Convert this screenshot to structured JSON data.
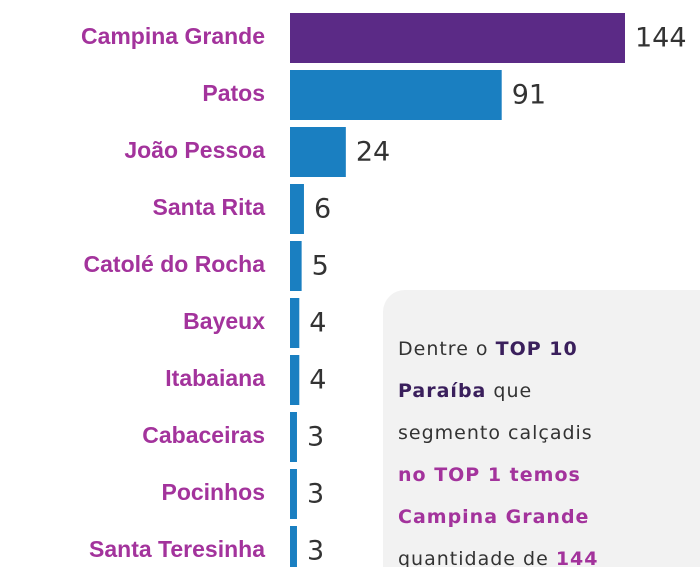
{
  "chart_data": {
    "type": "bar",
    "orientation": "horizontal",
    "categories": [
      "Campina Grande",
      "Patos",
      "João Pessoa",
      "Santa Rita",
      "Catolé do Rocha",
      "Bayeux",
      "Itabaiana",
      "Cabaceiras",
      "Pocinhos",
      "Santa Teresinha"
    ],
    "values": [
      144,
      91,
      24,
      6,
      5,
      4,
      4,
      3,
      3,
      3
    ],
    "colors": [
      "#5b2a86",
      "#1a7fc1",
      "#1a7fc1",
      "#1a7fc1",
      "#1a7fc1",
      "#1a7fc1",
      "#1a7fc1",
      "#1a7fc1",
      "#1a7fc1",
      "#1a7fc1"
    ],
    "xlim": [
      0,
      144
    ],
    "grid": false
  },
  "note": {
    "lines": [
      [
        {
          "text": "Dentre o "
        },
        {
          "text": "TOP 10",
          "style": "bold"
        }
      ],
      [
        {
          "text": "Paraíba",
          "style": "bold"
        },
        {
          "text": " que"
        }
      ],
      [
        {
          "text": "segmento calçadis"
        }
      ],
      [
        {
          "text": "no TOP 1 temos",
          "style": "highlight"
        }
      ],
      [
        {
          "text": "Campina Grande",
          "style": "highlight"
        }
      ],
      [
        {
          "text": "quantidade de "
        },
        {
          "text": "144",
          "style": "highlight"
        }
      ]
    ]
  }
}
